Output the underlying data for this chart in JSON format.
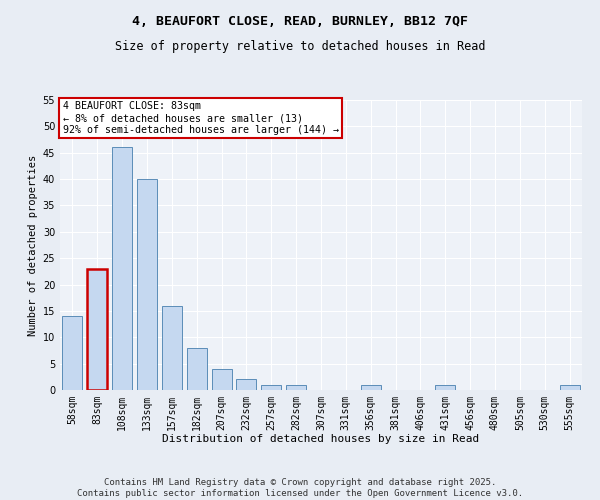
{
  "title1": "4, BEAUFORT CLOSE, READ, BURNLEY, BB12 7QF",
  "title2": "Size of property relative to detached houses in Read",
  "xlabel": "Distribution of detached houses by size in Read",
  "ylabel": "Number of detached properties",
  "categories": [
    "58sqm",
    "83sqm",
    "108sqm",
    "133sqm",
    "157sqm",
    "182sqm",
    "207sqm",
    "232sqm",
    "257sqm",
    "282sqm",
    "307sqm",
    "331sqm",
    "356sqm",
    "381sqm",
    "406sqm",
    "431sqm",
    "456sqm",
    "480sqm",
    "505sqm",
    "530sqm",
    "555sqm"
  ],
  "values": [
    14,
    23,
    46,
    40,
    16,
    8,
    4,
    2,
    1,
    1,
    0,
    0,
    1,
    0,
    0,
    1,
    0,
    0,
    0,
    0,
    1
  ],
  "bar_color": "#c5d8f0",
  "bar_edge_color": "#5b8db8",
  "highlight_bar_index": 1,
  "highlight_edge_color": "#cc0000",
  "annotation_text": "4 BEAUFORT CLOSE: 83sqm\n← 8% of detached houses are smaller (13)\n92% of semi-detached houses are larger (144) →",
  "annotation_box_edge_color": "#cc0000",
  "ylim": [
    0,
    55
  ],
  "yticks": [
    0,
    5,
    10,
    15,
    20,
    25,
    30,
    35,
    40,
    45,
    50,
    55
  ],
  "bg_color": "#e8edf4",
  "plot_bg_color": "#eef2f8",
  "footer": "Contains HM Land Registry data © Crown copyright and database right 2025.\nContains public sector information licensed under the Open Government Licence v3.0.",
  "title1_fontsize": 9.5,
  "title2_fontsize": 8.5,
  "annotation_fontsize": 7.2,
  "footer_fontsize": 6.5,
  "axis_fontsize": 7,
  "ylabel_fontsize": 7.5,
  "xlabel_fontsize": 8
}
